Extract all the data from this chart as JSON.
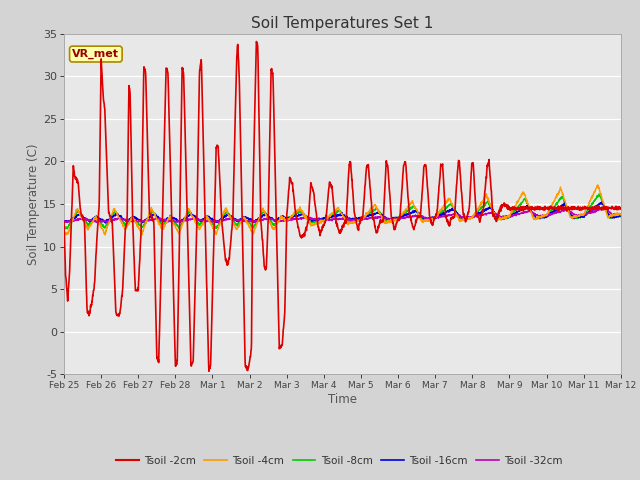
{
  "title": "Soil Temperatures Set 1",
  "xlabel": "Time",
  "ylabel": "Soil Temperature (C)",
  "ylim": [
    -5,
    35
  ],
  "fig_bg": "#d4d4d4",
  "plot_bg": "#e8e8e8",
  "grid_color": "#ffffff",
  "annotation_text": "VR_met",
  "annotation_color": "#990000",
  "annotation_bg": "#ffffaa",
  "annotation_border": "#aa8800",
  "series_colors": {
    "Tsoil -2cm": "#dd0000",
    "Tsoil -4cm": "#ff9900",
    "Tsoil -8cm": "#00cc00",
    "Tsoil -16cm": "#0000dd",
    "Tsoil -32cm": "#bb00bb"
  },
  "series_lw": {
    "Tsoil -2cm": 1.2,
    "Tsoil -4cm": 1.0,
    "Tsoil -8cm": 1.0,
    "Tsoil -16cm": 1.0,
    "Tsoil -32cm": 1.0
  },
  "tick_labels": [
    "Feb 25",
    "Feb 26",
    "Feb 27",
    "Feb 28",
    "Mar 1",
    "Mar 2",
    "Mar 3",
    "Mar 4",
    "Mar 5",
    "Mar 6",
    "Mar 7",
    "Mar 8",
    "Mar 9",
    "Mar 10",
    "Mar 11",
    "Mar 12"
  ],
  "yticks": [
    -5,
    0,
    5,
    10,
    15,
    20,
    25,
    30,
    35
  ],
  "n_days": 15
}
